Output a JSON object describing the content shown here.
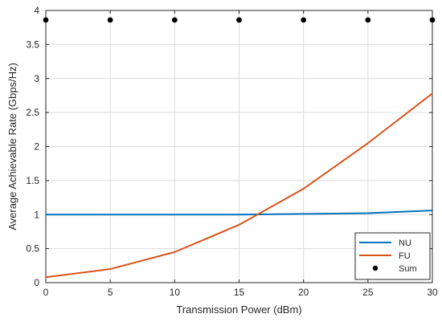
{
  "chart_data": {
    "type": "line",
    "x": [
      0,
      5,
      10,
      15,
      20,
      25,
      30
    ],
    "xlim": [
      0,
      30
    ],
    "ylim": [
      0,
      4
    ],
    "xticks": [
      "0",
      "5",
      "10",
      "15",
      "20",
      "25",
      "30"
    ],
    "yticks": [
      "0",
      "0.5",
      "1",
      "1.5",
      "2",
      "2.5",
      "3",
      "3.5",
      "4"
    ],
    "xlabel": "Transmission Power (dBm)",
    "ylabel": "Average Achievable Rate (Gbps/Hz)",
    "grid": true,
    "legend_position": "bottom-right",
    "series": [
      {
        "name": "NU",
        "style": "line",
        "color": "#0072BD",
        "values": [
          1.0,
          1.0,
          1.0,
          1.0,
          1.01,
          1.02,
          1.06
        ]
      },
      {
        "name": "FU",
        "style": "line",
        "color": "#D95319",
        "values": [
          0.08,
          0.2,
          0.45,
          0.85,
          1.38,
          2.05,
          2.78
        ]
      },
      {
        "name": "Sum",
        "style": "markers",
        "color": "#000000",
        "values": [
          3.86,
          3.86,
          3.86,
          3.86,
          3.86,
          3.86,
          3.86
        ]
      }
    ]
  }
}
